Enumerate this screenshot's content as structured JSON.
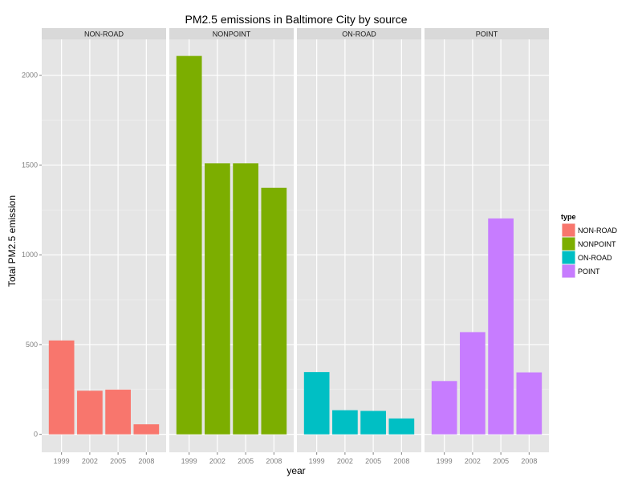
{
  "chart_data": {
    "type": "bar",
    "title": "PM2.5 emissions in Baltimore City by source",
    "xlabel": "year",
    "ylabel": "Total PM2.5 emission",
    "categories": [
      "1999",
      "2002",
      "2005",
      "2008"
    ],
    "ylim": [
      -100,
      2200
    ],
    "yticks": [
      0,
      500,
      1000,
      1500,
      2000
    ],
    "facet_layout": "columns",
    "grid": true,
    "legend": {
      "title": "type",
      "position": "right"
    },
    "series": [
      {
        "name": "NON-ROAD",
        "color": "#F8766D",
        "values": [
          522.9,
          242.7,
          248.9,
          55.8
        ]
      },
      {
        "name": "NONPOINT",
        "color": "#7CAE00",
        "values": [
          2107.6,
          1509.5,
          1509.5,
          1373.2
        ]
      },
      {
        "name": "ON-ROAD",
        "color": "#00BFC4",
        "values": [
          346.8,
          134.3,
          130.4,
          88.3
        ]
      },
      {
        "name": "POINT",
        "color": "#C77CFF",
        "values": [
          296.8,
          569.3,
          1202.5,
          345.0
        ]
      }
    ]
  }
}
